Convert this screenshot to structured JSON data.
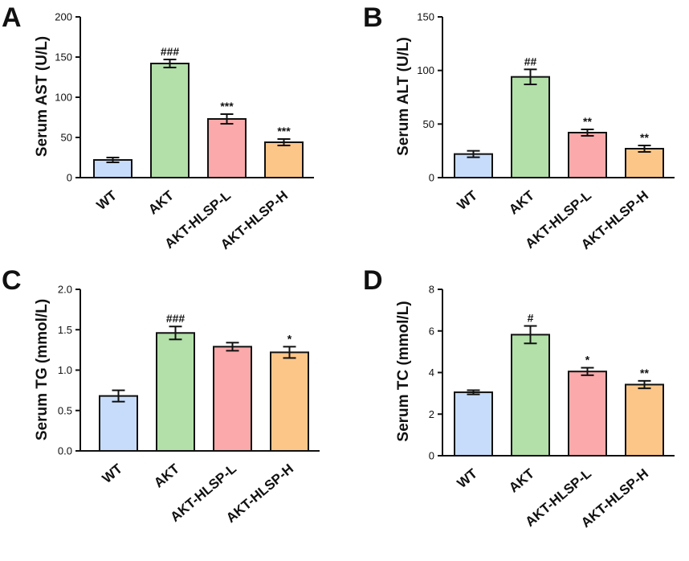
{
  "figure": {
    "series_colors": [
      "#c6dcfa",
      "#b2e0a8",
      "#fba9aa",
      "#fdc689"
    ]
  },
  "chart_data": [
    {
      "panel": "A",
      "type": "bar",
      "categories": [
        "WT",
        "AKT",
        "AKT-HLSP-L",
        "AKT-HLSP-H"
      ],
      "values": [
        22,
        142,
        73,
        44
      ],
      "errors": [
        3,
        5,
        6,
        4
      ],
      "significance": [
        "",
        "###",
        "***",
        "***"
      ],
      "ylabel": "Serum AST (U/L)",
      "ylim": [
        0,
        200
      ],
      "yticks": [
        0,
        50,
        100,
        150,
        200
      ]
    },
    {
      "panel": "B",
      "type": "bar",
      "categories": [
        "WT",
        "AKT",
        "AKT-HLSP-L",
        "AKT-HLSP-H"
      ],
      "values": [
        22,
        94,
        42,
        27
      ],
      "errors": [
        3,
        7,
        3,
        3
      ],
      "significance": [
        "",
        "##",
        "**",
        "**"
      ],
      "ylabel": "Serum ALT (U/L)",
      "ylim": [
        0,
        150
      ],
      "yticks": [
        0,
        50,
        100,
        150
      ]
    },
    {
      "panel": "C",
      "type": "bar",
      "categories": [
        "WT",
        "AKT",
        "AKT-HLSP-L",
        "AKT-HLSP-H"
      ],
      "values": [
        0.68,
        1.46,
        1.29,
        1.22
      ],
      "errors": [
        0.07,
        0.08,
        0.05,
        0.07
      ],
      "significance": [
        "",
        "###",
        "",
        "*"
      ],
      "ylabel": "Serum TG (mmol/L)",
      "ylim": [
        0,
        2.0
      ],
      "yticks": [
        "0.0",
        "0.5",
        "1.0",
        "1.5",
        "2.0"
      ]
    },
    {
      "panel": "D",
      "type": "bar",
      "categories": [
        "WT",
        "AKT",
        "AKT-HLSP-L",
        "AKT-HLSP-H"
      ],
      "values": [
        3.05,
        5.82,
        4.05,
        3.42
      ],
      "errors": [
        0.1,
        0.42,
        0.18,
        0.18
      ],
      "significance": [
        "",
        "#",
        "*",
        "**"
      ],
      "ylabel": "Serum TC (mmol/L)",
      "ylim": [
        0,
        8
      ],
      "yticks": [
        0,
        2,
        4,
        6,
        8
      ]
    }
  ]
}
